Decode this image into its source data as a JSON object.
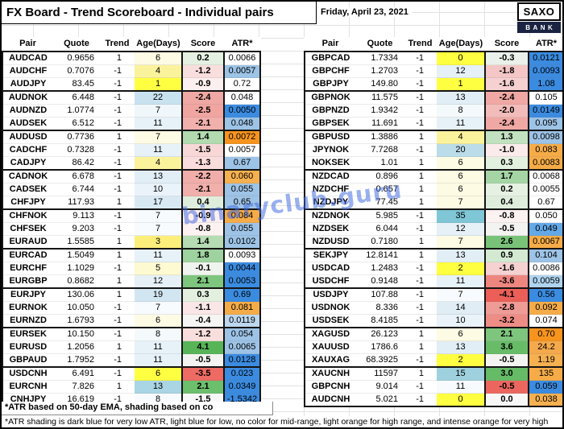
{
  "title": "FX Board - Trend Scoreboard - Individual pairs",
  "date": "Friday, April 23, 2021",
  "logo": {
    "top": "SAXO",
    "bottom": "BANK"
  },
  "watermark": "binaryclub.guru",
  "columns": [
    "Pair",
    "Quote",
    "Trend",
    "Age(Days)",
    "Score",
    "ATR*"
  ],
  "footnotes": [
    "*ATR based on 50-day EMA, shading based on co",
    "*ATR shading is dark blue for very low ATR, light blue for low, no color for mid-range, light orange for high range, and intense orange for very high"
  ],
  "legend_colors": {
    "atr_very_low": "#3B8BE0",
    "atr_low": "#9DC3E6",
    "atr_mid": "#FFFFFF",
    "atr_high": "#F5AC48",
    "atr_very_high": "#F7941E",
    "score_positive": "#57B558",
    "score_negative": "#EB5F58",
    "age_new": "#FFFF42",
    "age_old": "#7FC6D6"
  },
  "tables": [
    {
      "name": "left",
      "rows": [
        [
          "AUDCAD",
          "0.9656",
          "1",
          "6",
          "0.2",
          "0.0066",
          "#FDFBE3",
          "#E4F0E1",
          "#FFFFFF"
        ],
        [
          "AUDCHF",
          "0.7076",
          "-1",
          "4",
          "-1.2",
          "0.0057",
          "#FBF29C",
          "#F9DEDE",
          "#9DC3E6"
        ],
        [
          "AUDJPY",
          "83.45",
          "-1",
          "1",
          "-0.9",
          "0.72",
          "#FFFF42",
          "#FCEFEF",
          "#FFFFFF"
        ],
        [
          "AUDNOK",
          "6.448",
          "-1",
          "22",
          "-2.4",
          "0.048",
          "#C8E2EF",
          "#F0A8A4",
          "#FFFFFF"
        ],
        [
          "AUDNZD",
          "1.0774",
          "-1",
          "7",
          "-2.5",
          "0.0050",
          "#F0F7FA",
          "#F0A5A1",
          "#3B8BE0"
        ],
        [
          "AUDSEK",
          "6.512",
          "-1",
          "11",
          "-2.1",
          "0.048",
          "#E7F1F8",
          "#F1B0AC",
          "#9DC3E6"
        ],
        [
          "AUDUSD",
          "0.7736",
          "1",
          "7",
          "1.4",
          "0.0072",
          "#FDFBE3",
          "#B2DBB0",
          "#F7941E"
        ],
        [
          "CADCHF",
          "0.7328",
          "-1",
          "11",
          "-1.5",
          "0.0057",
          "#E7F1F8",
          "#F8D7D7",
          "#FFFFFF"
        ],
        [
          "CADJPY",
          "86.42",
          "-1",
          "4",
          "-1.3",
          "0.67",
          "#FBF29C",
          "#F9DCDC",
          "#9DC3E6"
        ],
        [
          "CADNOK",
          "6.678",
          "-1",
          "13",
          "-2.2",
          "0.060",
          "#E2EEF6",
          "#F0ADA9",
          "#F5B04F"
        ],
        [
          "CADSEK",
          "6.744",
          "-1",
          "10",
          "-2.1",
          "0.055",
          "#EAF3F9",
          "#F1B0AC",
          "#9DC3E6"
        ],
        [
          "CHFJPY",
          "117.93",
          "1",
          "17",
          "0.4",
          "0.65",
          "#D8E9F3",
          "#DFEEDC",
          "#9DC3E6"
        ],
        [
          "CHFNOK",
          "9.113",
          "-1",
          "7",
          "-0.9",
          "0.084",
          "#F8FBFD",
          "#FCEFEF",
          "#F5AC48"
        ],
        [
          "CHFSEK",
          "9.203",
          "-1",
          "7",
          "-0.8",
          "0.055",
          "#F8FBFD",
          "#FDF2F2",
          "#9DC3E6"
        ],
        [
          "EURAUD",
          "1.5585",
          "1",
          "3",
          "1.4",
          "0.0102",
          "#FBEE7A",
          "#B5DCB3",
          "#9DC3E6"
        ],
        [
          "EURCAD",
          "1.5049",
          "1",
          "11",
          "1.8",
          "0.0093",
          "#E7F1F8",
          "#9ED29E",
          "#FFFFFF"
        ],
        [
          "EURCHF",
          "1.1029",
          "-1",
          "5",
          "-0.1",
          "0.0044",
          "#FDF9D0",
          "#F0F4EF",
          "#3B8BE0"
        ],
        [
          "EURGBP",
          "0.8682",
          "1",
          "12",
          "2.1",
          "0.0053",
          "#E5F0F7",
          "#7EC57E",
          "#3B8BE0"
        ],
        [
          "EURJPY",
          "130.06",
          "1",
          "19",
          "0.3",
          "0.69",
          "#D2E6F1",
          "#E3F0E0",
          "#3B8BE0"
        ],
        [
          "EURNOK",
          "10.050",
          "-1",
          "7",
          "-1.1",
          "0.081",
          "#F8FBFD",
          "#FAE6E6",
          "#F5AC48"
        ],
        [
          "EURNZD",
          "1.6793",
          "-1",
          "6",
          "-0.4",
          "0.0119",
          "#FDFBE3",
          "#F5F6F3",
          "#BDD7EE"
        ],
        [
          "EURSEK",
          "10.150",
          "-1",
          "8",
          "-1.2",
          "0.054",
          "#F4F9FB",
          "#F9DEDE",
          "#9DC3E6"
        ],
        [
          "EURUSD",
          "1.2056",
          "1",
          "11",
          "4.1",
          "0.0065",
          "#E7F1F8",
          "#57B558",
          "#9DC3E6"
        ],
        [
          "GBPAUD",
          "1.7952",
          "-1",
          "11",
          "-0.5",
          "0.0128",
          "#E7F1F8",
          "#F3F4F1",
          "#3B8BE0"
        ],
        [
          "USDCNH",
          "6.491",
          "-1",
          "6",
          "-3.5",
          "0.023",
          "#FFFF42",
          "#ED6B63",
          "#3B8BE0"
        ],
        [
          "EURCNH",
          "7.826",
          "1",
          "13",
          "2.1",
          "0.0349",
          "#A9D5E4",
          "#6CBF6C",
          "#3B8BE0"
        ],
        [
          "CNHJPY",
          "16.619",
          "-1",
          "8",
          "-1.5",
          "-1.5342",
          "#F8FBFD",
          "#F7F7F7",
          "#3B8BE0"
        ]
      ]
    },
    {
      "name": "right",
      "rows": [
        [
          "GBPCAD",
          "1.7334",
          "-1",
          "0",
          "-0.3",
          "0.0121",
          "#FFFF42",
          "#EAF1EA",
          "#3B8BE0"
        ],
        [
          "GBPCHF",
          "1.2703",
          "-1",
          "12",
          "-1.8",
          "0.0093",
          "#E5F0F7",
          "#F4C6C6",
          "#3B8BE0"
        ],
        [
          "GBPJPY",
          "149.80",
          "-1",
          "1",
          "-1.6",
          "1.08",
          "#FFFF42",
          "#F6D1D1",
          "#3B8BE0"
        ],
        [
          "GBPNOK",
          "11.575",
          "-1",
          "13",
          "-2.4",
          "0.105",
          "#E2EEF6",
          "#F0A8A4",
          "#FFFFFF"
        ],
        [
          "GBPNZD",
          "1.9342",
          "-1",
          "8",
          "-2.0",
          "0.0149",
          "#F4F9FB",
          "#F2BCBA",
          "#3B8BE0"
        ],
        [
          "GBPSEK",
          "11.691",
          "-1",
          "11",
          "-2.4",
          "0.095",
          "#E7F1F8",
          "#F0A8A4",
          "#9DC3E6"
        ],
        [
          "GBPUSD",
          "1.3886",
          "1",
          "4",
          "1.3",
          "0.0098",
          "#FBF29C",
          "#C2E1C0",
          "#9DC3E6"
        ],
        [
          "JPYNOK",
          "7.7268",
          "-1",
          "20",
          "-1.0",
          "0.083",
          "#BBDCE9",
          "#FBEBEB",
          "#F5AC48"
        ],
        [
          "NOKSEK",
          "1.01",
          "1",
          "6",
          "0.3",
          "0.0083",
          "#FDFBE3",
          "#E3F0E0",
          "#F5AC48"
        ],
        [
          "NZDCAD",
          "0.896",
          "1",
          "6",
          "1.7",
          "0.0068",
          "#FDFBE3",
          "#A5D5A5",
          "#FFFFFF"
        ],
        [
          "NZDCHF",
          "0.657",
          "1",
          "6",
          "0.2",
          "0.0055",
          "#FDFBE3",
          "#E6F1E3",
          "#FFFFFF"
        ],
        [
          "NZDJPY",
          "77.45",
          "1",
          "7",
          "0.4",
          "0.67",
          "#FDFBE3",
          "#DFEEDC",
          "#FFFFFF"
        ],
        [
          "NZDNOK",
          "5.985",
          "-1",
          "35",
          "-0.8",
          "0.050",
          "#7FC6D6",
          "#FDF2F2",
          "#FFFFFF"
        ],
        [
          "NZDSEK",
          "6.044",
          "-1",
          "12",
          "-0.5",
          "0.049",
          "#E5F0F7",
          "#F3F4F1",
          "#63A9E8"
        ],
        [
          "NZDUSD",
          "0.7180",
          "1",
          "7",
          "2.6",
          "0.0067",
          "#FDFBE3",
          "#79C379",
          "#F5AC48"
        ],
        [
          "SEKJPY",
          "12.8141",
          "1",
          "13",
          "0.9",
          "0.104",
          "#E2EEF6",
          "#D3E9D1",
          "#9DC3E6"
        ],
        [
          "USDCAD",
          "1.2483",
          "-1",
          "2",
          "-1.6",
          "0.0086",
          "#FFFF42",
          "#F6D1D1",
          "#FFFFFF"
        ],
        [
          "USDCHF",
          "0.9148",
          "-1",
          "11",
          "-3.6",
          "0.0059",
          "#E7F1F8",
          "#EE8680",
          "#AFD3EF"
        ],
        [
          "USDJPY",
          "107.88",
          "-1",
          "7",
          "-4.1",
          "0.56",
          "#F8FBFD",
          "#EB5F58",
          "#3B8BE0"
        ],
        [
          "USDNOK",
          "8.336",
          "-1",
          "14",
          "-2.8",
          "0.092",
          "#E0EDF5",
          "#EF9B96",
          "#F5AC48"
        ],
        [
          "USDSEK",
          "8.4185",
          "-1",
          "10",
          "-3.2",
          "0.074",
          "#EAF3F9",
          "#EE8C86",
          "#FFFFFF"
        ],
        [
          "XAGUSD",
          "26.123",
          "1",
          "6",
          "2.1",
          "0.70",
          "#FDFBE3",
          "#7EC57E",
          "#F7941E"
        ],
        [
          "XAUUSD",
          "1786.6",
          "1",
          "13",
          "3.6",
          "24.2",
          "#E2EEF6",
          "#68BC68",
          "#F4A94C"
        ],
        [
          "XAUXAG",
          "68.3925",
          "-1",
          "2",
          "-0.5",
          "1.19",
          "#FFFF42",
          "#F3F4F1",
          "#F5B04F"
        ],
        [
          "XAUCNH",
          "11597",
          "1",
          "15",
          "3.0",
          "135",
          "#9FD0DE",
          "#66BB66",
          "#F5AC48"
        ],
        [
          "GBPCNH",
          "9.014",
          "-1",
          "11",
          "-0.5",
          "0.059",
          "#F8FBFD",
          "#EC6660",
          "#3B8BE0"
        ],
        [
          "AUDCNH",
          "5.021",
          "-1",
          "0",
          "0.0",
          "0.038",
          "#FFFF42",
          "#F7F7F7",
          "#F5B04F"
        ]
      ]
    }
  ]
}
